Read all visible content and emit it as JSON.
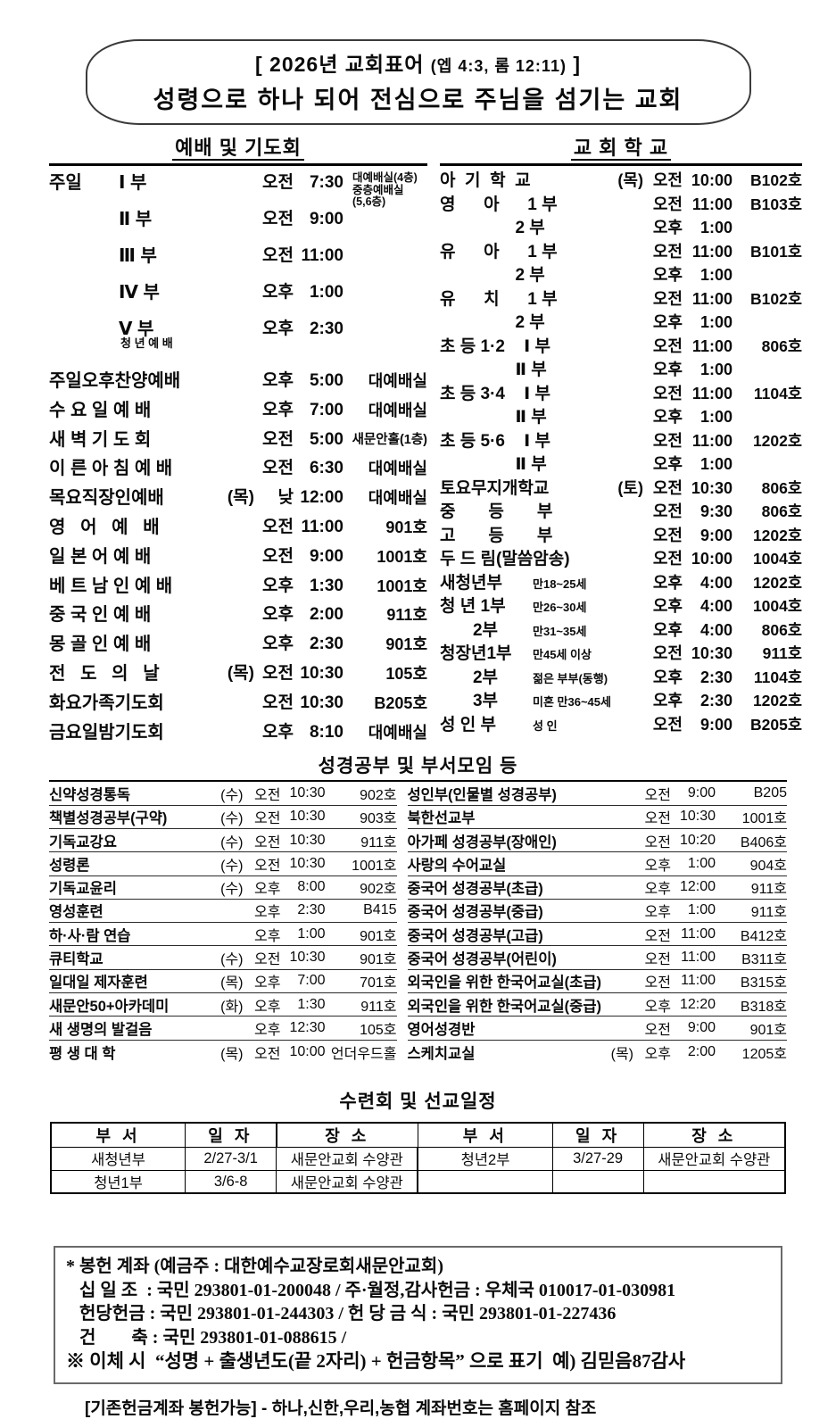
{
  "motto": {
    "prefix": "[ 2026년 교회표어 ",
    "ref": "(엡 4:3, 롬 12:11)",
    "suffix": " ]",
    "slogan": "성령으로 하나 되어 전심으로 주님을 섬기는 교회"
  },
  "worship": {
    "title": "예배 및 기도회",
    "rows": [
      {
        "cls": "grp smallplace",
        "g": "주일",
        "n": "Ⅰ 부",
        "day": "",
        "ampm": "오전",
        "time": "7:30",
        "place": "대예배실(4층)\n중층예배실\n(5,6층)"
      },
      {
        "cls": "grp",
        "g": "",
        "n": "Ⅱ 부",
        "day": "",
        "ampm": "오전",
        "time": "9:00",
        "place": ""
      },
      {
        "cls": "grp",
        "g": "",
        "n": "Ⅲ 부",
        "day": "",
        "ampm": "오전",
        "time": "11:00",
        "place": ""
      },
      {
        "cls": "grp",
        "g": "",
        "n": "Ⅳ 부",
        "day": "",
        "ampm": "오후",
        "time": "1:00",
        "place": ""
      },
      {
        "cls": "grp withsub",
        "g": "",
        "n": "Ⅴ 부",
        "sub": "청 년 예 배",
        "day": "",
        "ampm": "오후",
        "time": "2:30",
        "place": ""
      },
      {
        "g": "주일오후찬양예배",
        "n": "",
        "day": "",
        "ampm": "오후",
        "time": "5:00",
        "place": "대예배실"
      },
      {
        "g": "수 요 일 예 배",
        "n": "",
        "day": "",
        "ampm": "오후",
        "time": "7:00",
        "place": "대예배실"
      },
      {
        "cls": "sp",
        "g": "새 벽 기 도 회",
        "n": "",
        "day": "",
        "ampm": "오전",
        "time": "5:00",
        "place": "새문안홀(1층)"
      },
      {
        "g": "이 른 아 침 예 배",
        "n": "",
        "day": "",
        "ampm": "오전",
        "time": "6:30",
        "place": "대예배실"
      },
      {
        "g": "목요직장인예배",
        "n": "",
        "day": "(목)",
        "ampm": "낮",
        "time": "12:00",
        "place": "대예배실"
      },
      {
        "g": "영   어   예   배",
        "n": "",
        "day": "",
        "ampm": "오전",
        "time": "11:00",
        "place": "901호"
      },
      {
        "g": "일 본 어 예 배",
        "n": "",
        "day": "",
        "ampm": "오전",
        "time": "9:00",
        "place": "1001호"
      },
      {
        "g": "베 트 남 인 예 배",
        "n": "",
        "day": "",
        "ampm": "오후",
        "time": "1:30",
        "place": "1001호"
      },
      {
        "g": "중 국 인 예 배",
        "n": "",
        "day": "",
        "ampm": "오후",
        "time": "2:00",
        "place": "911호"
      },
      {
        "g": "몽 골 인 예 배",
        "n": "",
        "day": "",
        "ampm": "오후",
        "time": "2:30",
        "place": "901호"
      },
      {
        "g": "전   도   의   날",
        "n": "",
        "day": "(목)",
        "ampm": "오전",
        "time": "10:30",
        "place": "105호"
      },
      {
        "g": "화요가족기도회",
        "n": "",
        "day": "",
        "ampm": "오전",
        "time": "10:30",
        "place": "B205호"
      },
      {
        "g": "금요일밤기도회",
        "n": "",
        "day": "",
        "ampm": "오후",
        "time": "8:10",
        "place": "대예배실"
      }
    ]
  },
  "school": {
    "title": "교 회 학 교",
    "rows": [
      {
        "g": "아  기  학  교",
        "note": "",
        "day": "(목)",
        "ampm": "오전",
        "time": "10:00",
        "place": "B102호"
      },
      {
        "g": "영      아      1 부",
        "note": "",
        "day": "",
        "ampm": "오전",
        "time": "11:00",
        "place": "B103호"
      },
      {
        "g": "                2 부",
        "note": "",
        "day": "",
        "ampm": "오후",
        "time": "1:00",
        "place": ""
      },
      {
        "g": "유      아      1 부",
        "note": "",
        "day": "",
        "ampm": "오전",
        "time": "11:00",
        "place": "B101호"
      },
      {
        "g": "                2 부",
        "note": "",
        "day": "",
        "ampm": "오후",
        "time": "1:00",
        "place": ""
      },
      {
        "g": "유      치      1 부",
        "note": "",
        "day": "",
        "ampm": "오전",
        "time": "11:00",
        "place": "B102호"
      },
      {
        "g": "                2 부",
        "note": "",
        "day": "",
        "ampm": "오후",
        "time": "1:00",
        "place": ""
      },
      {
        "g": "초 등 1·2    Ⅰ 부",
        "note": "",
        "day": "",
        "ampm": "오전",
        "time": "11:00",
        "place": "806호"
      },
      {
        "g": "                Ⅱ 부",
        "note": "",
        "day": "",
        "ampm": "오후",
        "time": "1:00",
        "place": ""
      },
      {
        "g": "초 등 3·4    Ⅰ 부",
        "note": "",
        "day": "",
        "ampm": "오전",
        "time": "11:00",
        "place": "1104호"
      },
      {
        "g": "                Ⅱ 부",
        "note": "",
        "day": "",
        "ampm": "오후",
        "time": "1:00",
        "place": ""
      },
      {
        "g": "초 등 5·6    Ⅰ 부",
        "note": "",
        "day": "",
        "ampm": "오전",
        "time": "11:00",
        "place": "1202호"
      },
      {
        "g": "                Ⅱ 부",
        "note": "",
        "day": "",
        "ampm": "오후",
        "time": "1:00",
        "place": ""
      },
      {
        "g": "토요무지개학교",
        "note": "",
        "day": "(토)",
        "ampm": "오전",
        "time": "10:30",
        "place": "806호"
      },
      {
        "g": "중       등       부",
        "note": "",
        "day": "",
        "ampm": "오전",
        "time": "9:30",
        "place": "806호"
      },
      {
        "g": "고       등       부",
        "note": "",
        "day": "",
        "ampm": "오전",
        "time": "9:00",
        "place": "1202호"
      },
      {
        "g": "두 드 림(말씀암송)",
        "note": "",
        "day": "",
        "ampm": "오전",
        "time": "10:00",
        "place": "1004호"
      },
      {
        "g": "새청년부",
        "note": "만18~25세",
        "day": "",
        "ampm": "오후",
        "time": "4:00",
        "place": "1202호"
      },
      {
        "g": "청 년 1부",
        "note": "만26~30세",
        "day": "",
        "ampm": "오후",
        "time": "4:00",
        "place": "1004호"
      },
      {
        "g": "       2부",
        "note": "만31~35세",
        "day": "",
        "ampm": "오후",
        "time": "4:00",
        "place": "806호"
      },
      {
        "g": "청장년1부",
        "note": "만45세 이상",
        "day": "",
        "ampm": "오전",
        "time": "10:30",
        "place": "911호"
      },
      {
        "g": "       2부",
        "note": "젊은 부부(동행)",
        "day": "",
        "ampm": "오후",
        "time": "2:30",
        "place": "1104호"
      },
      {
        "g": "       3부",
        "note": "미혼 만36~45세",
        "day": "",
        "ampm": "오후",
        "time": "2:30",
        "place": "1202호"
      },
      {
        "g": "성 인 부",
        "note": "성 인",
        "day": "",
        "ampm": "오전",
        "time": "9:00",
        "place": "B205호"
      }
    ]
  },
  "study": {
    "title": "성경공부 및 부서모임 등",
    "left": [
      {
        "name": "신약성경통독",
        "day": "(수)",
        "ampm": "오전",
        "time": "10:30",
        "place": "902호"
      },
      {
        "name": "책별성경공부(구약)",
        "day": "(수)",
        "ampm": "오전",
        "time": "10:30",
        "place": "903호"
      },
      {
        "name": "기독교강요",
        "day": "(수)",
        "ampm": "오전",
        "time": "10:30",
        "place": "911호"
      },
      {
        "name": "성령론",
        "day": "(수)",
        "ampm": "오전",
        "time": "10:30",
        "place": "1001호"
      },
      {
        "name": "기독교윤리",
        "day": "(수)",
        "ampm": "오후",
        "time": "8:00",
        "place": "902호"
      },
      {
        "name": "영성훈련",
        "day": "",
        "ampm": "오후",
        "time": "2:30",
        "place": "B415"
      },
      {
        "name": "하·사·람 연습",
        "day": "",
        "ampm": "오후",
        "time": "1:00",
        "place": "901호"
      },
      {
        "name": "큐티학교",
        "day": "(수)",
        "ampm": "오전",
        "time": "10:30",
        "place": "901호"
      },
      {
        "name": "일대일 제자훈련",
        "day": "(목)",
        "ampm": "오후",
        "time": "7:00",
        "place": "701호"
      },
      {
        "name": "새문안50+아카데미",
        "day": "(화)",
        "ampm": "오후",
        "time": "1:30",
        "place": "911호"
      },
      {
        "name": "새 생명의 발걸음",
        "day": "",
        "ampm": "오후",
        "time": "12:30",
        "place": "105호"
      },
      {
        "name": "평 생 대 학",
        "day": "(목)",
        "ampm": "오전",
        "time": "10:00",
        "place": "언더우드홀"
      }
    ],
    "right": [
      {
        "name": "성인부(인물별 성경공부)",
        "day": "",
        "ampm": "오전",
        "time": "9:00",
        "place": "B205"
      },
      {
        "name": "북한선교부",
        "day": "",
        "ampm": "오전",
        "time": "10:30",
        "place": "1001호"
      },
      {
        "name": "아가페 성경공부(장애인)",
        "day": "",
        "ampm": "오전",
        "time": "10:20",
        "place": "B406호"
      },
      {
        "name": "사랑의 수어교실",
        "day": "",
        "ampm": "오후",
        "time": "1:00",
        "place": "904호"
      },
      {
        "name": "중국어 성경공부(초급)",
        "day": "",
        "ampm": "오후",
        "time": "12:00",
        "place": "911호"
      },
      {
        "name": "중국어 성경공부(중급)",
        "day": "",
        "ampm": "오후",
        "time": "1:00",
        "place": "911호"
      },
      {
        "name": "중국어 성경공부(고급)",
        "day": "",
        "ampm": "오전",
        "time": "11:00",
        "place": "B412호"
      },
      {
        "name": "중국어 성경공부(어린이)",
        "day": "",
        "ampm": "오전",
        "time": "11:00",
        "place": "B311호"
      },
      {
        "name": "외국인을 위한 한국어교실(초급)",
        "day": "",
        "ampm": "오전",
        "time": "11:00",
        "place": "B315호"
      },
      {
        "name": "외국인을 위한 한국어교실(중급)",
        "day": "",
        "ampm": "오후",
        "time": "12:20",
        "place": "B318호"
      },
      {
        "name": "영어성경반",
        "day": "",
        "ampm": "오전",
        "time": "9:00",
        "place": "901호"
      },
      {
        "name": "스케치교실",
        "day": "(목)",
        "ampm": "오후",
        "time": "2:00",
        "place": "1205호"
      }
    ]
  },
  "retreat": {
    "title": "수련회 및 선교일정",
    "headers": [
      "부 서",
      "일 자",
      "장 소",
      "부 서",
      "일 자",
      "장 소"
    ],
    "rows": [
      [
        "새청년부",
        "2/27-3/1",
        "새문안교회 수양관",
        "청년2부",
        "3/27-29",
        "새문안교회 수양관"
      ],
      [
        "청년1부",
        "3/6-8",
        "새문안교회 수양관",
        "",
        "",
        ""
      ]
    ]
  },
  "offering": {
    "box_lines": [
      "* 봉헌 계좌 (예금주 : 대한예수교장로회새문안교회)",
      "   십 일 조  : 국민 293801-01-200048 / 주·월정,감사헌금 : 우체국 010017-01-030981",
      "   헌당헌금 : 국민 293801-01-244303 / 헌 당 금 식 : 국민 293801-01-227436",
      "   건        축 : 국민 293801-01-088615 /",
      "※ 이체 시  “성명 + 출생년도(끝 2자리) + 헌금항목” 으로 표기  예) 김믿음87감사"
    ],
    "footer": "[기존헌금계좌 봉헌가능] - 하나,신한,우리,농협 계좌번호는 홈페이지 참조"
  }
}
